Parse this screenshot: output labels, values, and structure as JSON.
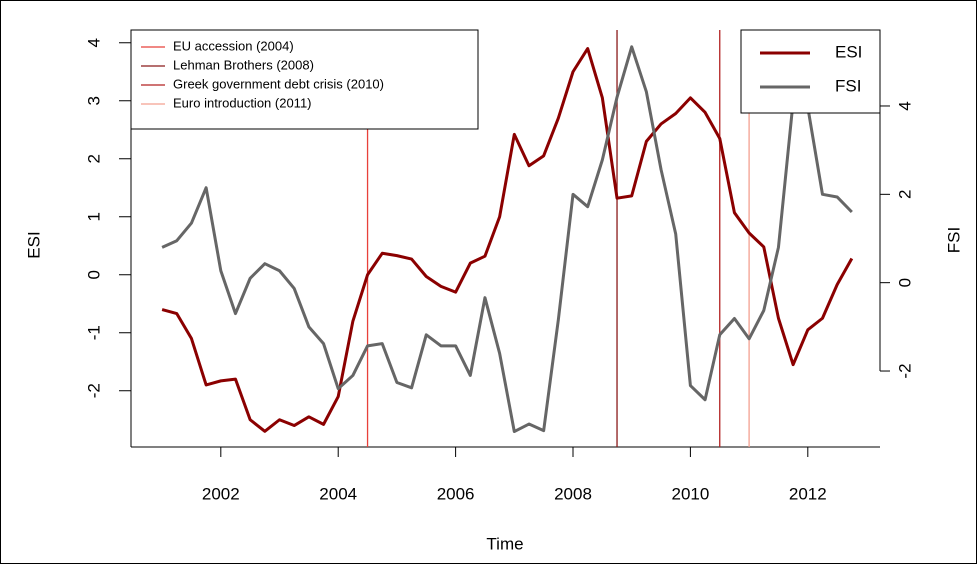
{
  "chart_data": {
    "type": "line",
    "xlabel": "Time",
    "ylabel": "ESI",
    "y2label": "FSI",
    "x": [
      2001,
      2001.25,
      2001.5,
      2001.75,
      2002,
      2002.25,
      2002.5,
      2002.75,
      2003,
      2003.25,
      2003.5,
      2003.75,
      2004,
      2004.25,
      2004.5,
      2004.75,
      2005,
      2005.25,
      2005.5,
      2005.75,
      2006,
      2006.25,
      2006.5,
      2006.75,
      2007,
      2007.25,
      2007.5,
      2007.75,
      2008,
      2008.25,
      2008.5,
      2008.75,
      2009,
      2009.25,
      2009.5,
      2009.75,
      2010,
      2010.25,
      2010.5,
      2010.75,
      2011,
      2011.25,
      2011.5,
      2011.75,
      2012,
      2012.25,
      2012.5,
      2012.75
    ],
    "series": [
      {
        "name": "ESI",
        "color": "#8b0000",
        "values": [
          -0.6,
          -0.67,
          -1.1,
          -1.9,
          -1.83,
          -1.8,
          -2.5,
          -2.7,
          -2.5,
          -2.6,
          -2.45,
          -2.58,
          -2.1,
          -0.8,
          0.0,
          0.37,
          0.33,
          0.27,
          -0.03,
          -0.2,
          -0.3,
          0.2,
          0.32,
          1.0,
          2.42,
          1.88,
          2.05,
          2.7,
          3.5,
          3.9,
          3.05,
          1.32,
          1.36,
          2.3,
          2.6,
          2.78,
          3.05,
          2.8,
          2.35,
          1.07,
          0.72,
          0.48,
          -0.75,
          -1.55,
          -0.95,
          -0.75,
          -0.17,
          0.28
        ]
      },
      {
        "name": "FSI",
        "color": "#666666",
        "axis": "y2",
        "values": [
          0.8,
          0.95,
          1.35,
          2.15,
          0.27,
          -0.7,
          0.1,
          0.43,
          0.27,
          -0.13,
          -1.0,
          -1.38,
          -2.4,
          -2.1,
          -1.43,
          -1.38,
          -2.26,
          -2.38,
          -1.18,
          -1.43,
          -1.43,
          -2.1,
          -0.34,
          -1.6,
          -3.37,
          -3.2,
          -3.35,
          -0.84,
          2.0,
          1.72,
          2.78,
          4.2,
          5.34,
          4.32,
          2.56,
          1.1,
          -2.33,
          -2.65,
          -1.18,
          -0.81,
          -1.27,
          -0.63,
          0.8,
          4.1,
          3.97,
          2.0,
          1.94,
          1.6
        ]
      }
    ],
    "events": [
      {
        "name": "EU accession (2004)",
        "x": 2004.5,
        "color": "#e8403a"
      },
      {
        "name": "Lehman Brothers (2008)",
        "x": 2008.75,
        "color": "#8b1a1a"
      },
      {
        "name": "Greek government debt crisis (2010)",
        "x": 2010.5,
        "color": "#b22222"
      },
      {
        "name": "Euro introduction (2011)",
        "x": 2011,
        "color": "#f4a090"
      }
    ],
    "xlim": [
      2000.47,
      2013.23
    ],
    "xticks": [
      2002,
      2004,
      2006,
      2008,
      2010,
      2012
    ],
    "ylim": [
      -2.97,
      4.22
    ],
    "yticks": [
      -2,
      -1,
      0,
      1,
      2,
      3,
      4
    ],
    "y2lim": [
      -3.72,
      5.72
    ],
    "y2ticks": [
      -2,
      0,
      2,
      4
    ],
    "legend": "top-right",
    "events_legend": "top-left"
  }
}
